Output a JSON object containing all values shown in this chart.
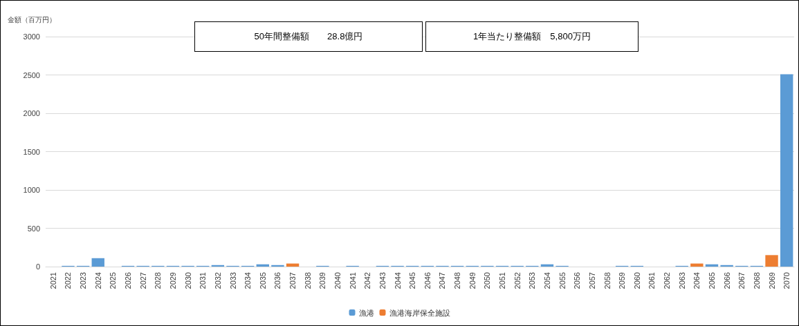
{
  "chart_data": {
    "type": "bar",
    "stacked": true,
    "ylabel": "金額（百万円）",
    "annotations": [
      "50年間整備額　　28.8億円",
      "1年当たり整備額　5,800万円"
    ],
    "categories": [
      "2021",
      "2022",
      "2023",
      "2024",
      "2025",
      "2026",
      "2027",
      "2028",
      "2029",
      "2030",
      "2031",
      "2032",
      "2033",
      "2034",
      "2035",
      "2036",
      "2037",
      "2038",
      "2039",
      "2040",
      "2041",
      "2042",
      "2043",
      "2044",
      "2045",
      "2046",
      "2047",
      "2048",
      "2049",
      "2050",
      "2051",
      "2052",
      "2053",
      "2054",
      "2055",
      "2056",
      "2057",
      "2058",
      "2059",
      "2060",
      "2061",
      "2062",
      "2063",
      "2064",
      "2065",
      "2066",
      "2067",
      "2068",
      "2069",
      "2070"
    ],
    "series": [
      {
        "name": "漁港",
        "color": "#5b9bd5",
        "values": [
          null,
          10,
          10,
          110,
          null,
          10,
          10,
          10,
          10,
          10,
          10,
          20,
          10,
          10,
          30,
          20,
          null,
          null,
          10,
          null,
          10,
          null,
          10,
          10,
          10,
          10,
          10,
          10,
          10,
          10,
          10,
          10,
          10,
          30,
          10,
          null,
          null,
          null,
          10,
          10,
          null,
          null,
          10,
          null,
          30,
          20,
          10,
          10,
          null,
          2510
        ]
      },
      {
        "name": "漁港海岸保全施設",
        "color": "#ed7d31",
        "values": [
          null,
          null,
          null,
          null,
          null,
          null,
          null,
          null,
          null,
          null,
          null,
          null,
          null,
          null,
          null,
          null,
          40,
          null,
          null,
          null,
          null,
          null,
          null,
          null,
          null,
          null,
          null,
          null,
          null,
          null,
          null,
          null,
          null,
          null,
          null,
          null,
          null,
          null,
          null,
          null,
          null,
          null,
          null,
          40,
          null,
          null,
          null,
          null,
          150,
          null
        ]
      }
    ],
    "ylim": [
      0,
      3000
    ],
    "yticks": [
      0,
      500,
      1000,
      1500,
      2000,
      2500,
      3000
    ],
    "grid": "y",
    "legend": "bottom"
  }
}
